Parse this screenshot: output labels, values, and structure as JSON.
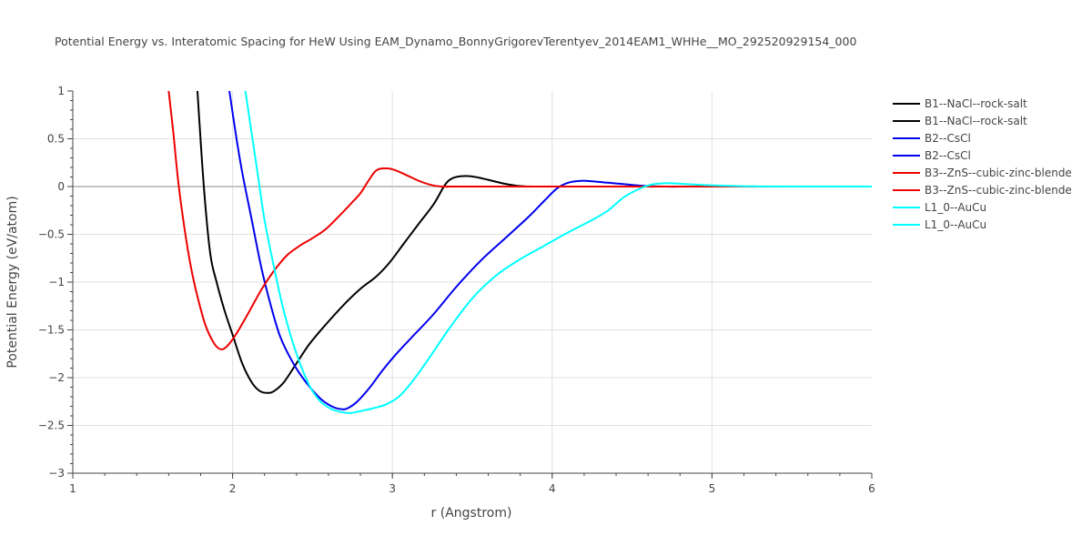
{
  "chart_data": {
    "type": "line",
    "title": "Potential Energy vs. Interatomic Spacing for HeW Using EAM_Dynamo_BonnyGrigorevTerentyev_2014EAM1_WHHe__MO_292520929154_000",
    "xlabel": "r (Angstrom)",
    "ylabel": "Potential Energy (eV/atom)",
    "xlim": [
      1,
      6
    ],
    "ylim": [
      -3,
      1
    ],
    "x_ticks": [
      "1",
      "2",
      "3",
      "4",
      "5",
      "6"
    ],
    "y_ticks": [
      "1",
      "0.5",
      "0",
      "−0.5",
      "−1",
      "−1.5",
      "−2",
      "−2.5",
      "−3"
    ],
    "grid": true,
    "legend_position": "right",
    "series": [
      {
        "name": "B1--NaCl--rock-salt",
        "color": "#000000",
        "x": [
          1.78,
          1.82,
          1.86,
          1.9,
          1.95,
          2.0,
          2.06,
          2.12,
          2.17,
          2.22,
          2.26,
          2.32,
          2.4,
          2.48,
          2.58,
          2.7,
          2.8,
          2.9,
          2.98,
          3.07,
          3.16,
          3.26,
          3.33,
          3.38,
          3.45,
          3.52,
          3.6,
          3.7,
          3.8,
          3.9,
          4.1,
          4.5,
          5.0,
          6.0
        ],
        "y": [
          1.0,
          0.0,
          -0.7,
          -1.0,
          -1.3,
          -1.55,
          -1.85,
          -2.05,
          -2.14,
          -2.16,
          -2.14,
          -2.05,
          -1.85,
          -1.65,
          -1.45,
          -1.23,
          -1.07,
          -0.94,
          -0.8,
          -0.6,
          -0.4,
          -0.18,
          0.02,
          0.09,
          0.11,
          0.1,
          0.07,
          0.03,
          0.005,
          0.0,
          0.0,
          0.0,
          0.0,
          0.0
        ]
      },
      {
        "name": "B1--NaCl--rock-salt",
        "color": "#000000",
        "x": [
          3.9,
          4.5,
          5.0,
          6.0
        ],
        "y": [
          0.0,
          0.0,
          0.0,
          0.0
        ]
      },
      {
        "name": "B2--CsCl",
        "color": "#0000ee",
        "x": [
          1.98,
          2.02,
          2.06,
          2.12,
          2.18,
          2.24,
          2.3,
          2.38,
          2.46,
          2.55,
          2.62,
          2.68,
          2.72,
          2.78,
          2.86,
          2.94,
          3.02,
          3.12,
          3.25,
          3.4,
          3.55,
          3.7,
          3.85,
          3.95,
          4.03,
          4.1,
          4.18,
          4.25,
          4.35,
          4.45,
          4.55,
          4.7,
          5.0,
          6.0
        ],
        "y": [
          1.0,
          0.55,
          0.15,
          -0.35,
          -0.85,
          -1.25,
          -1.58,
          -1.85,
          -2.05,
          -2.22,
          -2.3,
          -2.33,
          -2.32,
          -2.25,
          -2.1,
          -1.92,
          -1.76,
          -1.58,
          -1.35,
          -1.05,
          -0.78,
          -0.55,
          -0.32,
          -0.15,
          -0.02,
          0.04,
          0.06,
          0.055,
          0.04,
          0.025,
          0.01,
          0.0,
          0.0,
          0.0
        ]
      },
      {
        "name": "B2--CsCl",
        "color": "#0000ee",
        "x": [
          4.7,
          5.0,
          6.0
        ],
        "y": [
          0.0,
          0.0,
          0.0
        ]
      },
      {
        "name": "B3--ZnS--cubic-zinc-blende",
        "color": "#ee0000",
        "x": [
          1.6,
          1.63,
          1.66,
          1.7,
          1.74,
          1.78,
          1.83,
          1.88,
          1.92,
          1.96,
          2.02,
          2.1,
          2.18,
          2.26,
          2.34,
          2.42,
          2.5,
          2.58,
          2.66,
          2.74,
          2.8,
          2.85,
          2.9,
          2.96,
          3.02,
          3.1,
          3.18,
          3.26,
          3.32,
          3.4,
          3.6,
          4.0,
          5.0,
          6.0
        ],
        "y": [
          1.0,
          0.55,
          0.05,
          -0.45,
          -0.85,
          -1.15,
          -1.45,
          -1.63,
          -1.7,
          -1.68,
          -1.55,
          -1.32,
          -1.08,
          -0.88,
          -0.72,
          -0.62,
          -0.54,
          -0.45,
          -0.32,
          -0.18,
          -0.07,
          0.06,
          0.17,
          0.19,
          0.17,
          0.11,
          0.05,
          0.01,
          0.0,
          0.0,
          0.0,
          0.0,
          0.0,
          0.0
        ]
      },
      {
        "name": "B3--ZnS--cubic-zinc-blende",
        "color": "#ee0000",
        "x": [
          3.32,
          4.0,
          5.0,
          6.0
        ],
        "y": [
          0.0,
          0.0,
          0.0,
          0.0
        ]
      },
      {
        "name": "L1_0--AuCu",
        "color": "#00ffff",
        "x": [
          2.08,
          2.12,
          2.16,
          2.2,
          2.26,
          2.32,
          2.4,
          2.48,
          2.55,
          2.62,
          2.68,
          2.74,
          2.8,
          2.88,
          2.96,
          3.04,
          3.12,
          3.22,
          3.35,
          3.5,
          3.65,
          3.8,
          3.95,
          4.1,
          4.25,
          4.35,
          4.45,
          4.55,
          4.62,
          4.7,
          4.8,
          4.9,
          5.05,
          5.25,
          5.5,
          6.0
        ],
        "y": [
          1.0,
          0.55,
          0.1,
          -0.35,
          -0.85,
          -1.3,
          -1.75,
          -2.08,
          -2.25,
          -2.33,
          -2.36,
          -2.37,
          -2.35,
          -2.32,
          -2.28,
          -2.2,
          -2.05,
          -1.82,
          -1.5,
          -1.17,
          -0.93,
          -0.76,
          -0.62,
          -0.48,
          -0.35,
          -0.25,
          -0.11,
          -0.02,
          0.02,
          0.035,
          0.03,
          0.02,
          0.01,
          0.002,
          0.0,
          0.0
        ]
      },
      {
        "name": "L1_0--AuCu",
        "color": "#00ffff",
        "x": [
          5.5,
          6.0
        ],
        "y": [
          0.0,
          0.0
        ]
      }
    ]
  }
}
